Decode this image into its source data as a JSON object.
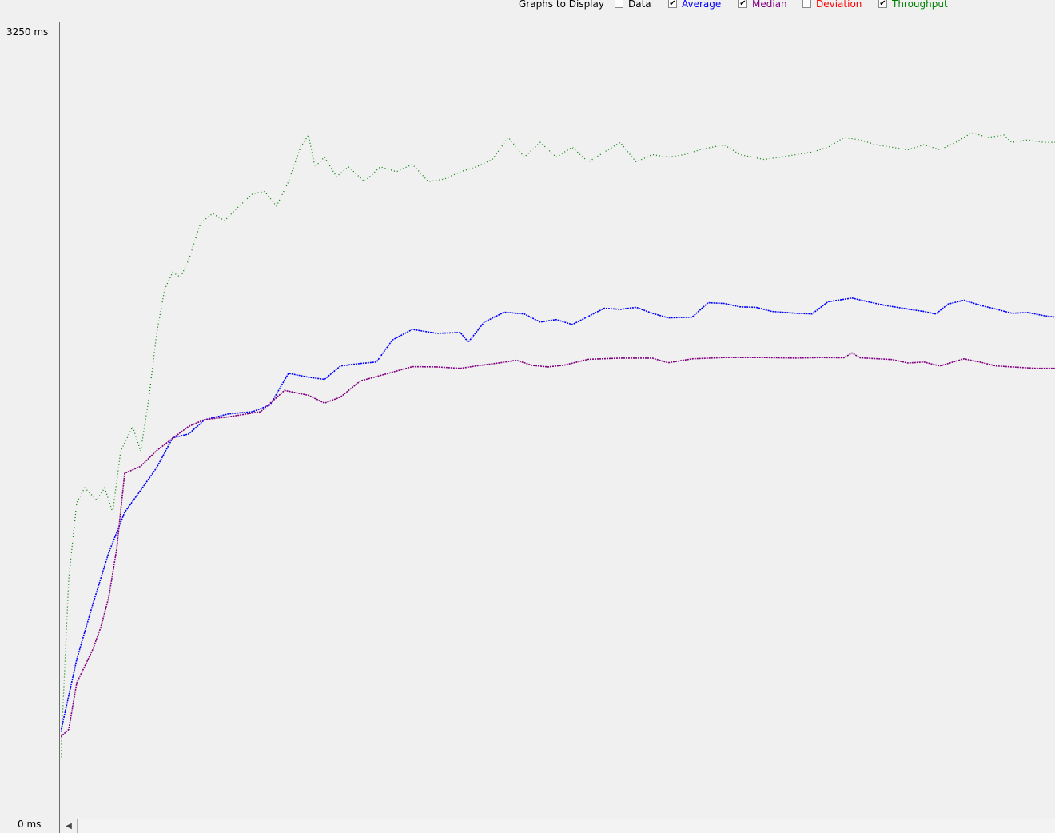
{
  "legend": {
    "title": "Graphs to Display",
    "items": [
      {
        "label": "Data",
        "checked": false,
        "color": "#000000",
        "check": ""
      },
      {
        "label": "Average",
        "checked": true,
        "color": "#0000ff",
        "check": "✔"
      },
      {
        "label": "Median",
        "checked": true,
        "color": "#800080",
        "check": "✔"
      },
      {
        "label": "Deviation",
        "checked": false,
        "color": "#ff0000",
        "check": ""
      },
      {
        "label": "Throughput",
        "checked": true,
        "color": "#008000",
        "check": "✔"
      }
    ]
  },
  "axis": {
    "y_max_label": "3250  ms",
    "y_min_label": "0  ms"
  },
  "icons": {
    "scroll_left": "◀"
  },
  "chart_data": {
    "type": "line",
    "x": "sample index",
    "ylim": [
      0,
      3250
    ],
    "y_unit": "ms",
    "grid": false,
    "series": [
      {
        "name": "Average",
        "color": "#0000ff",
        "points": [
          [
            0,
            354
          ],
          [
            20,
            650
          ],
          [
            40,
            874
          ],
          [
            60,
            1085
          ],
          [
            80,
            1250
          ],
          [
            100,
            1340
          ],
          [
            120,
            1432
          ],
          [
            140,
            1554
          ],
          [
            160,
            1570
          ],
          [
            180,
            1628
          ],
          [
            210,
            1652
          ],
          [
            240,
            1661
          ],
          [
            262,
            1689
          ],
          [
            285,
            1818
          ],
          [
            310,
            1802
          ],
          [
            330,
            1793
          ],
          [
            350,
            1848
          ],
          [
            375,
            1858
          ],
          [
            395,
            1864
          ],
          [
            415,
            1954
          ],
          [
            440,
            1997
          ],
          [
            470,
            1981
          ],
          [
            500,
            1984
          ],
          [
            510,
            1945
          ],
          [
            530,
            2027
          ],
          [
            555,
            2067
          ],
          [
            580,
            2060
          ],
          [
            600,
            2027
          ],
          [
            620,
            2037
          ],
          [
            640,
            2017
          ],
          [
            660,
            2050
          ],
          [
            680,
            2083
          ],
          [
            700,
            2079
          ],
          [
            720,
            2087
          ],
          [
            740,
            2063
          ],
          [
            760,
            2044
          ],
          [
            790,
            2047
          ],
          [
            810,
            2106
          ],
          [
            830,
            2103
          ],
          [
            850,
            2089
          ],
          [
            870,
            2087
          ],
          [
            890,
            2070
          ],
          [
            920,
            2063
          ],
          [
            940,
            2060
          ],
          [
            960,
            2110
          ],
          [
            990,
            2125
          ],
          [
            1010,
            2110
          ],
          [
            1030,
            2096
          ],
          [
            1060,
            2080
          ],
          [
            1080,
            2070
          ],
          [
            1095,
            2060
          ],
          [
            1110,
            2100
          ],
          [
            1130,
            2116
          ],
          [
            1150,
            2096
          ],
          [
            1170,
            2080
          ],
          [
            1190,
            2063
          ],
          [
            1210,
            2066
          ],
          [
            1230,
            2053
          ],
          [
            1244,
            2047
          ]
        ]
      },
      {
        "name": "Median",
        "color": "#800080",
        "points": [
          [
            0,
            334
          ],
          [
            10,
            364
          ],
          [
            20,
            554
          ],
          [
            40,
            690
          ],
          [
            50,
            780
          ],
          [
            60,
            903
          ],
          [
            70,
            1100
          ],
          [
            80,
            1409
          ],
          [
            100,
            1438
          ],
          [
            120,
            1502
          ],
          [
            140,
            1552
          ],
          [
            160,
            1601
          ],
          [
            180,
            1629
          ],
          [
            210,
            1640
          ],
          [
            250,
            1661
          ],
          [
            280,
            1748
          ],
          [
            310,
            1728
          ],
          [
            330,
            1696
          ],
          [
            350,
            1721
          ],
          [
            375,
            1787
          ],
          [
            410,
            1818
          ],
          [
            440,
            1845
          ],
          [
            470,
            1844
          ],
          [
            500,
            1838
          ],
          [
            520,
            1848
          ],
          [
            550,
            1861
          ],
          [
            570,
            1871
          ],
          [
            590,
            1850
          ],
          [
            610,
            1844
          ],
          [
            630,
            1851
          ],
          [
            660,
            1875
          ],
          [
            700,
            1880
          ],
          [
            740,
            1880
          ],
          [
            760,
            1861
          ],
          [
            790,
            1877
          ],
          [
            830,
            1882
          ],
          [
            880,
            1882
          ],
          [
            920,
            1880
          ],
          [
            950,
            1882
          ],
          [
            980,
            1881
          ],
          [
            990,
            1901
          ],
          [
            1000,
            1881
          ],
          [
            1040,
            1874
          ],
          [
            1060,
            1860
          ],
          [
            1080,
            1864
          ],
          [
            1100,
            1848
          ],
          [
            1130,
            1877
          ],
          [
            1150,
            1864
          ],
          [
            1170,
            1848
          ],
          [
            1190,
            1844
          ],
          [
            1220,
            1838
          ],
          [
            1244,
            1838
          ]
        ]
      },
      {
        "name": "Throughput",
        "color": "#008000",
        "points": [
          [
            0,
            250
          ],
          [
            10,
            980
          ],
          [
            20,
            1290
          ],
          [
            30,
            1350
          ],
          [
            45,
            1300
          ],
          [
            55,
            1350
          ],
          [
            65,
            1250
          ],
          [
            75,
            1500
          ],
          [
            90,
            1600
          ],
          [
            100,
            1500
          ],
          [
            110,
            1710
          ],
          [
            120,
            1980
          ],
          [
            130,
            2160
          ],
          [
            140,
            2230
          ],
          [
            150,
            2210
          ],
          [
            160,
            2280
          ],
          [
            175,
            2430
          ],
          [
            190,
            2470
          ],
          [
            205,
            2440
          ],
          [
            220,
            2490
          ],
          [
            240,
            2550
          ],
          [
            255,
            2560
          ],
          [
            270,
            2500
          ],
          [
            285,
            2600
          ],
          [
            300,
            2740
          ],
          [
            310,
            2790
          ],
          [
            318,
            2660
          ],
          [
            330,
            2700
          ],
          [
            345,
            2620
          ],
          [
            360,
            2660
          ],
          [
            380,
            2600
          ],
          [
            400,
            2660
          ],
          [
            420,
            2640
          ],
          [
            440,
            2670
          ],
          [
            460,
            2600
          ],
          [
            480,
            2610
          ],
          [
            500,
            2640
          ],
          [
            520,
            2660
          ],
          [
            540,
            2690
          ],
          [
            560,
            2780
          ],
          [
            580,
            2700
          ],
          [
            600,
            2760
          ],
          [
            620,
            2700
          ],
          [
            640,
            2740
          ],
          [
            660,
            2680
          ],
          [
            680,
            2720
          ],
          [
            700,
            2760
          ],
          [
            720,
            2680
          ],
          [
            740,
            2710
          ],
          [
            760,
            2700
          ],
          [
            780,
            2710
          ],
          [
            800,
            2730
          ],
          [
            830,
            2750
          ],
          [
            850,
            2710
          ],
          [
            880,
            2690
          ],
          [
            900,
            2700
          ],
          [
            920,
            2710
          ],
          [
            940,
            2720
          ],
          [
            960,
            2740
          ],
          [
            980,
            2780
          ],
          [
            1000,
            2770
          ],
          [
            1020,
            2750
          ],
          [
            1040,
            2740
          ],
          [
            1060,
            2730
          ],
          [
            1080,
            2750
          ],
          [
            1100,
            2730
          ],
          [
            1120,
            2760
          ],
          [
            1140,
            2800
          ],
          [
            1160,
            2780
          ],
          [
            1180,
            2790
          ],
          [
            1190,
            2760
          ],
          [
            1210,
            2770
          ],
          [
            1230,
            2760
          ],
          [
            1244,
            2760
          ]
        ]
      }
    ]
  }
}
